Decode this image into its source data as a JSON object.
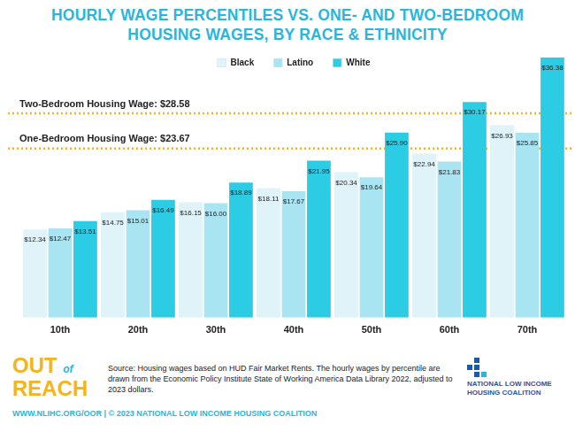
{
  "chart_data": {
    "type": "bar",
    "title": "HOURLY WAGE PERCENTILES VS. ONE- AND TWO-BEDROOM HOUSING WAGES, BY RACE & ETHNICITY",
    "categories": [
      "10th",
      "20th",
      "30th",
      "40th",
      "50th",
      "60th",
      "70th"
    ],
    "series": [
      {
        "name": "Black",
        "color": "#dff3f9",
        "values": [
          12.34,
          14.75,
          16.15,
          18.11,
          20.34,
          22.94,
          26.93
        ],
        "value_labels": [
          "$12.34",
          "$14.75",
          "$16.15",
          "$18.11",
          "$20.34",
          "$22.94",
          "$26.93"
        ]
      },
      {
        "name": "Latino",
        "color": "#a9e4f2",
        "values": [
          12.47,
          15.01,
          16.0,
          17.67,
          19.64,
          21.83,
          25.85
        ],
        "value_labels": [
          "$12.47",
          "$15.01",
          "$16.00",
          "$17.67",
          "$19.64",
          "$21.83",
          "$25.85"
        ]
      },
      {
        "name": "White",
        "color": "#2ccce4",
        "values": [
          13.51,
          16.49,
          18.89,
          21.95,
          25.9,
          30.17,
          36.38
        ],
        "value_labels": [
          "$13.51",
          "$16.49",
          "$18.89",
          "$21.95",
          "$25.90",
          "$30.17",
          "$36.38"
        ]
      }
    ],
    "ylim": [
      0,
      37
    ],
    "grid": false,
    "legend": "top",
    "data_labels": true,
    "tick_labels": "x",
    "annotations": [
      {
        "text": "Two-Bedroom Housing Wage: $28.58",
        "y": 28.58,
        "color": "#f2b51c"
      },
      {
        "text": "One-Bedroom Housing Wage: $23.67",
        "y": 23.67,
        "color": "#f2b51c"
      }
    ]
  },
  "footer": {
    "logo": "OUT of REACH",
    "source": "Source: Housing wages based on HUD Fair Market Rents. The hourly wages by percentile are drawn from the Economic Policy Institute State of Working America Data Library 2022, adjusted to 2023 dollars.",
    "organization": "NATIONAL LOW INCOME HOUSING COALITION",
    "credit": "WWW.NLIHC.ORG/OOR | © 2023 NATIONAL LOW INCOME HOUSING COALITION"
  }
}
